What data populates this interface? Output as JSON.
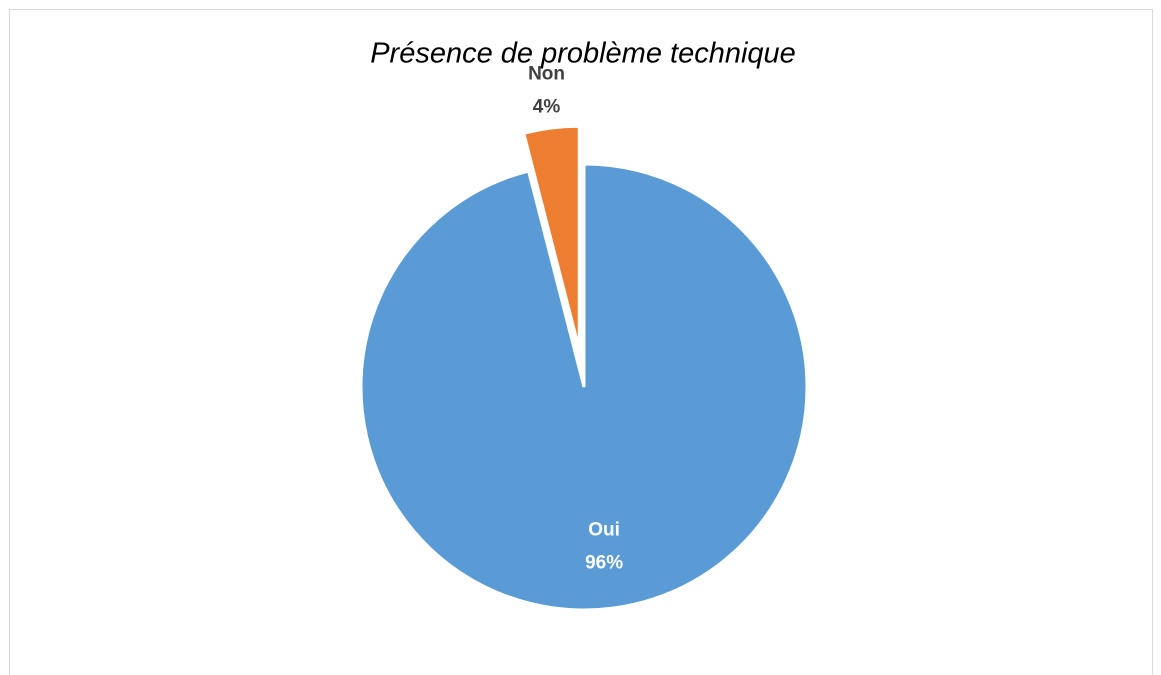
{
  "chart_data": {
    "type": "pie",
    "title": "Présence de problème technique",
    "categories": [
      "Oui",
      "Non"
    ],
    "values": [
      96,
      4
    ],
    "value_labels": [
      "96%",
      "4%"
    ],
    "colors": [
      "#5b9bd5",
      "#ed7d31"
    ]
  }
}
